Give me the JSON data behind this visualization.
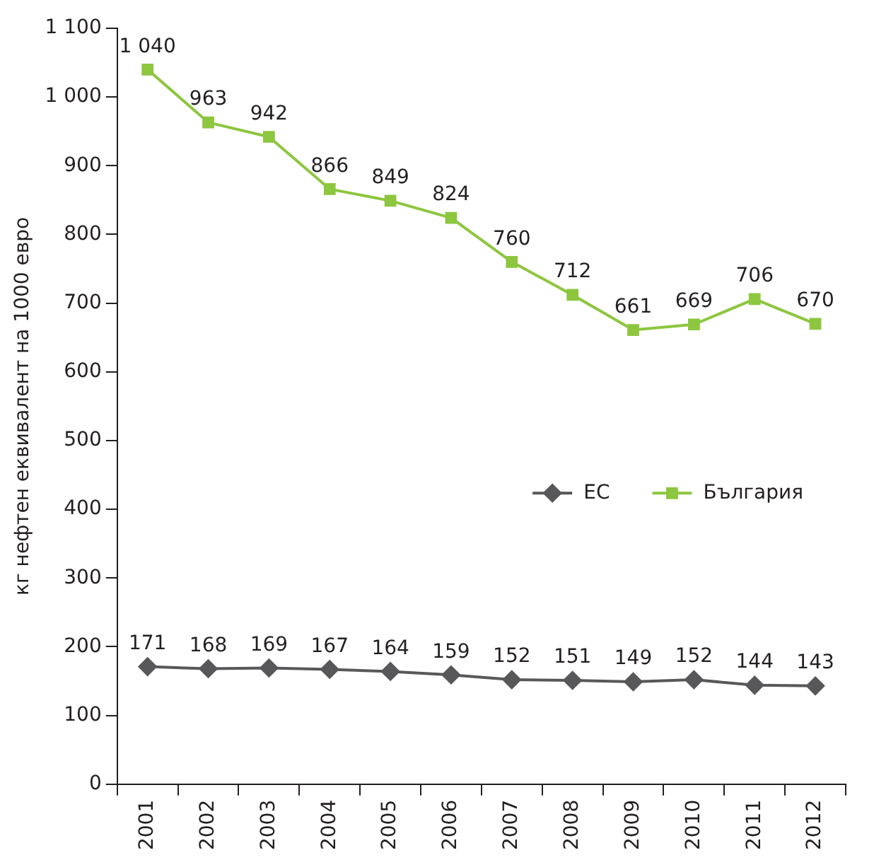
{
  "chart_data": {
    "type": "line",
    "ylabel": "кг нефтен еквивалент на 1000 евро",
    "categories": [
      "2001",
      "2002",
      "2003",
      "2004",
      "2005",
      "2006",
      "2007",
      "2008",
      "2009",
      "2010",
      "2011",
      "2012"
    ],
    "series": [
      {
        "name": "ЕС",
        "color": "#58585a",
        "marker": "diamond",
        "values": [
          171,
          168,
          169,
          167,
          164,
          159,
          152,
          151,
          149,
          152,
          144,
          143
        ],
        "value_labels": [
          "171",
          "168",
          "169",
          "167",
          "164",
          "159",
          "152",
          "151",
          "149",
          "152",
          "144",
          "143"
        ]
      },
      {
        "name": "България",
        "color": "#8dc63f",
        "marker": "square",
        "values": [
          1040,
          963,
          942,
          866,
          849,
          824,
          760,
          712,
          661,
          669,
          706,
          670
        ],
        "value_labels": [
          "1 040",
          "963",
          "942",
          "866",
          "849",
          "824",
          "760",
          "712",
          "661",
          "669",
          "706",
          "670"
        ]
      }
    ],
    "ylim": [
      0,
      1100
    ],
    "yticks": [
      0,
      100,
      200,
      300,
      400,
      500,
      600,
      700,
      800,
      900,
      {
        "value": 1000,
        "label": "1 000"
      },
      {
        "value": 1100,
        "label": "1 100"
      }
    ],
    "grid": false,
    "legend": "right",
    "line_style": "solid"
  }
}
